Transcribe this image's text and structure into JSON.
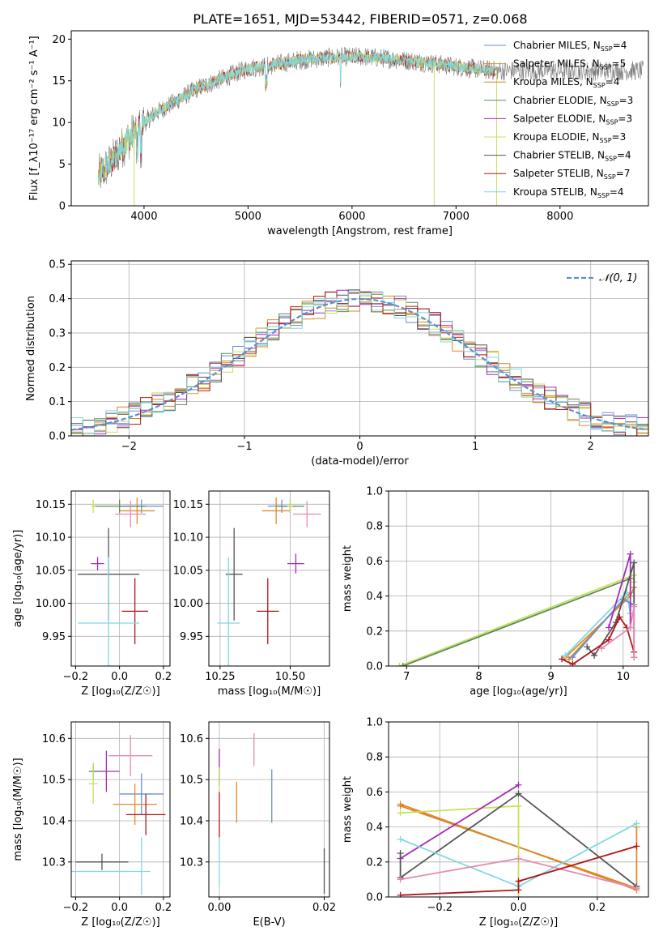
{
  "figure_title": "PLATE=1651, MJD=53442, FIBERID=0571, z=0.068",
  "colors": {
    "chabrier_miles": "#6a8fd6",
    "salpeter_miles": "#e6892b",
    "kroupa_miles": "#d4872a",
    "chabrier_elodie": "#5d8a5d",
    "salpeter_elodie": "#a52ab8",
    "kroupa_elodie": "#c8e05a",
    "chabrier_stelib": "#555555",
    "salpeter_stelib": "#b01818",
    "kroupa_stelib": "#7fd8e0",
    "pink": "#e68ab4",
    "data": "#7a7a7a",
    "normal_curve": "#5b8fd6",
    "grid": "#b0b0b0"
  },
  "chart_data": [
    {
      "type": "line",
      "xlabel": "wavelength [Angstrom, rest frame]",
      "ylabel": "Flux [f_λ10⁻¹⁷ erg cm⁻² s⁻¹ A⁻¹]",
      "xlim": [
        3300,
        8850
      ],
      "ylim": [
        0,
        21
      ],
      "xticks": [
        4000,
        5000,
        6000,
        7000,
        8000
      ],
      "yticks": [
        0,
        5,
        10,
        15,
        20
      ],
      "continuum": [
        [
          3560,
          3.5
        ],
        [
          3700,
          5.5
        ],
        [
          3850,
          8
        ],
        [
          3950,
          9.5
        ],
        [
          4100,
          11
        ],
        [
          4300,
          12.5
        ],
        [
          4500,
          14
        ],
        [
          4800,
          15.5
        ],
        [
          5000,
          16.5
        ],
        [
          5200,
          16.8
        ],
        [
          5500,
          17.5
        ],
        [
          5800,
          17.8
        ],
        [
          6100,
          17.9
        ],
        [
          6400,
          17.6
        ],
        [
          6700,
          17.2
        ],
        [
          7000,
          16.7
        ],
        [
          7200,
          16.4
        ],
        [
          7400,
          16.2
        ]
      ],
      "data_extent": [
        3560,
        8800
      ],
      "legend": [
        {
          "label": "Chabrier MILES, N_SSP=4",
          "base": "Chabrier MILES, N",
          "sub": "SSP",
          "tail": "=4",
          "color_key": "chabrier_miles"
        },
        {
          "label": "Salpeter MILES, N_SSP=5",
          "base": "Salpeter MILES, N",
          "sub": "SSP",
          "tail": "=5",
          "color_key": "salpeter_miles"
        },
        {
          "label": "Kroupa MILES, N_SSP=4",
          "base": "Kroupa MILES, N",
          "sub": "SSP",
          "tail": "=4",
          "color_key": "kroupa_miles"
        },
        {
          "label": "Chabrier ELODIE, N_SSP=3",
          "base": "Chabrier ELODIE, N",
          "sub": "SSP",
          "tail": "=3",
          "color_key": "chabrier_elodie"
        },
        {
          "label": "Salpeter ELODIE, N_SSP=3",
          "base": "Salpeter ELODIE, N",
          "sub": "SSP",
          "tail": "=3",
          "color_key": "salpeter_elodie"
        },
        {
          "label": "Kroupa ELODIE, N_SSP=3",
          "base": "Kroupa ELODIE, N",
          "sub": "SSP",
          "tail": "=3",
          "color_key": "kroupa_elodie"
        },
        {
          "label": "Chabrier STELIB, N_SSP=4",
          "base": "Chabrier STELIB, N",
          "sub": "SSP",
          "tail": "=4",
          "color_key": "chabrier_stelib"
        },
        {
          "label": "Salpeter STELIB, N_SSP=7",
          "base": "Salpeter STELIB, N",
          "sub": "SSP",
          "tail": "=7",
          "color_key": "salpeter_stelib"
        },
        {
          "label": "Kroupa STELIB, N_SSP=4",
          "base": "Kroupa STELIB, N",
          "sub": "SSP",
          "tail": "=4",
          "color_key": "kroupa_stelib"
        }
      ]
    },
    {
      "type": "histogram",
      "xlabel": "(data-model)/error",
      "ylabel": "Normed distribution",
      "xlim": [
        -2.5,
        2.5
      ],
      "ylim": [
        0,
        0.51
      ],
      "xticks": [
        -2,
        -1,
        0,
        1,
        2
      ],
      "yticks": [
        0.0,
        0.1,
        0.2,
        0.3,
        0.4,
        0.5
      ],
      "legend": "𝒩(0, 1)",
      "bin_width": 0.1
    },
    {
      "type": "scatter",
      "xlabel": "Z [log₁₀(Z/Z☉)]",
      "ylabel": "age  [log₁₀(age/yr)]",
      "xlim": [
        -0.22,
        0.23
      ],
      "ylim": [
        9.905,
        10.17
      ],
      "xticks": [
        -0.2,
        0.0,
        0.2
      ],
      "yticks": [
        9.95,
        10.0,
        10.05,
        10.1,
        10.15
      ],
      "points": [
        {
          "x": 0.1,
          "y": 10.147,
          "xerr": 0.1,
          "yerr": 0.01,
          "c": "chabrier_miles"
        },
        {
          "x": 0.08,
          "y": 10.14,
          "xerr": 0.08,
          "yerr": 0.02,
          "c": "salpeter_miles"
        },
        {
          "x": 0.0,
          "y": 10.147,
          "xerr": 0.12,
          "yerr": 0.01,
          "c": "chabrier_elodie"
        },
        {
          "x": 0.05,
          "y": 10.135,
          "xerr": 0.07,
          "yerr": 0.02,
          "c": "pink"
        },
        {
          "x": -0.1,
          "y": 10.06,
          "xerr": 0.03,
          "yerr": 0.01,
          "c": "salpeter_elodie"
        },
        {
          "x": -0.12,
          "y": 10.147,
          "xerr": 0.01,
          "yerr": 0.01,
          "c": "kroupa_elodie"
        },
        {
          "x": -0.05,
          "y": 10.044,
          "xerr": 0.14,
          "yerr": 0.07,
          "c": "chabrier_stelib"
        },
        {
          "x": 0.07,
          "y": 9.988,
          "xerr": 0.06,
          "yerr": 0.05,
          "c": "salpeter_stelib"
        },
        {
          "x": -0.05,
          "y": 9.97,
          "xerr": 0.14,
          "yerr": 0.1,
          "c": "kroupa_stelib"
        }
      ]
    },
    {
      "type": "scatter",
      "xlabel": "mass [log₁₀(M/M☉)]",
      "ylabel": "",
      "xlim": [
        10.21,
        10.64
      ],
      "ylim": [
        9.905,
        10.17
      ],
      "xticks": [
        10.25,
        10.5
      ],
      "yticks": [
        9.95,
        10.0,
        10.05,
        10.1,
        10.15
      ],
      "points": [
        {
          "x": 10.47,
          "y": 10.147,
          "xerr": 0.05,
          "yerr": 0.01,
          "c": "chabrier_miles"
        },
        {
          "x": 10.45,
          "y": 10.14,
          "xerr": 0.05,
          "yerr": 0.02,
          "c": "salpeter_miles"
        },
        {
          "x": 10.5,
          "y": 10.147,
          "xerr": 0.05,
          "yerr": 0.01,
          "c": "chabrier_elodie"
        },
        {
          "x": 10.56,
          "y": 10.135,
          "xerr": 0.05,
          "yerr": 0.02,
          "c": "pink"
        },
        {
          "x": 10.52,
          "y": 10.06,
          "xerr": 0.03,
          "yerr": 0.015,
          "c": "salpeter_elodie"
        },
        {
          "x": 10.5,
          "y": 10.147,
          "xerr": 0.01,
          "yerr": 0.01,
          "c": "kroupa_elodie"
        },
        {
          "x": 10.3,
          "y": 10.044,
          "xerr": 0.03,
          "yerr": 0.07,
          "c": "chabrier_stelib"
        },
        {
          "x": 10.42,
          "y": 9.988,
          "xerr": 0.04,
          "yerr": 0.05,
          "c": "salpeter_stelib"
        },
        {
          "x": 10.28,
          "y": 9.97,
          "xerr": 0.04,
          "yerr": 0.1,
          "c": "kroupa_stelib"
        }
      ]
    },
    {
      "type": "line",
      "xlabel": "age  [log₁₀(age/yr)]",
      "ylabel": "mass weight",
      "xlim": [
        6.75,
        10.35
      ],
      "ylim": [
        0,
        1.0
      ],
      "xticks": [
        7,
        8,
        9,
        10
      ],
      "yticks": [
        0.0,
        0.2,
        0.4,
        0.6,
        0.8,
        1.0
      ],
      "series": [
        {
          "c": "kroupa_elodie",
          "pts": [
            [
              6.9,
              0.0
            ],
            [
              10.15,
              0.52
            ],
            [
              10.15,
              0.48
            ]
          ]
        },
        {
          "c": "chabrier_elodie",
          "pts": [
            [
              6.95,
              0.0
            ],
            [
              10.1,
              0.5
            ]
          ]
        },
        {
          "c": "salpeter_miles",
          "pts": [
            [
              9.2,
              0.05
            ],
            [
              10.1,
              0.4
            ],
            [
              10.15,
              0.45
            ]
          ]
        },
        {
          "c": "kroupa_miles",
          "pts": [
            [
              9.25,
              0.04
            ],
            [
              10.1,
              0.42
            ]
          ]
        },
        {
          "c": "kroupa_stelib",
          "pts": [
            [
              9.2,
              0.06
            ],
            [
              10.05,
              0.42
            ],
            [
              10.1,
              0.3
            ]
          ]
        },
        {
          "c": "chabrier_miles",
          "pts": [
            [
              9.3,
              0.05
            ],
            [
              10.0,
              0.38
            ],
            [
              10.15,
              0.35
            ]
          ]
        },
        {
          "c": "salpeter_elodie",
          "pts": [
            [
              9.8,
              0.22
            ],
            [
              10.1,
              0.64
            ],
            [
              10.1,
              0.22
            ]
          ]
        },
        {
          "c": "chabrier_stelib",
          "pts": [
            [
              9.5,
              0.11
            ],
            [
              9.6,
              0.06
            ],
            [
              9.9,
              0.25
            ],
            [
              10.15,
              0.59
            ],
            [
              10.15,
              0.05
            ]
          ]
        },
        {
          "c": "salpeter_stelib",
          "pts": [
            [
              9.15,
              0.04
            ],
            [
              9.3,
              0.01
            ],
            [
              9.8,
              0.15
            ],
            [
              9.95,
              0.28
            ],
            [
              10.05,
              0.22
            ],
            [
              10.15,
              0.08
            ]
          ]
        },
        {
          "c": "pink",
          "pts": [
            [
              9.7,
              0.1
            ],
            [
              10.1,
              0.22
            ],
            [
              10.15,
              0.34
            ],
            [
              10.15,
              0.05
            ]
          ]
        }
      ]
    },
    {
      "type": "scatter",
      "xlabel": "Z [log₁₀(Z/Z☉)]",
      "ylabel": "mass [log₁₀(M/M☉)]",
      "xlim": [
        -0.22,
        0.23
      ],
      "ylim": [
        10.215,
        10.64
      ],
      "xticks": [
        -0.2,
        0.0,
        0.2
      ],
      "yticks": [
        10.3,
        10.4,
        10.5,
        10.6
      ],
      "points": [
        {
          "x": 0.1,
          "y": 10.465,
          "xerr": 0.1,
          "yerr": 0.05,
          "c": "chabrier_miles"
        },
        {
          "x": 0.07,
          "y": 10.44,
          "xerr": 0.1,
          "yerr": 0.05,
          "c": "salpeter_miles"
        },
        {
          "x": 0.05,
          "y": 10.558,
          "xerr": 0.1,
          "yerr": 0.05,
          "c": "pink"
        },
        {
          "x": -0.06,
          "y": 10.52,
          "xerr": 0.06,
          "yerr": 0.05,
          "c": "salpeter_elodie"
        },
        {
          "x": -0.12,
          "y": 10.52,
          "xerr": 0.02,
          "yerr": 0.02,
          "c": "chabrier_elodie"
        },
        {
          "x": -0.12,
          "y": 10.49,
          "xerr": 0.02,
          "yerr": 0.05,
          "c": "kroupa_elodie"
        },
        {
          "x": 0.12,
          "y": 10.415,
          "xerr": 0.09,
          "yerr": 0.05,
          "c": "salpeter_stelib"
        },
        {
          "x": -0.08,
          "y": 10.3,
          "xerr": 0.12,
          "yerr": 0.02,
          "c": "chabrier_stelib"
        },
        {
          "x": -0.05,
          "y": 10.277,
          "xerr": 0.19,
          "yerr": 0.0,
          "c": "kroupa_stelib"
        },
        {
          "x": 0.1,
          "y": 10.29,
          "xerr": 0.0,
          "yerr": 0.07,
          "c": "kroupa_stelib"
        }
      ]
    },
    {
      "type": "scatter",
      "xlabel": "E(B-V)",
      "ylabel": "",
      "xlim": [
        -0.002,
        0.021
      ],
      "ylim": [
        10.215,
        10.64
      ],
      "xticks": [
        0.0,
        0.02
      ],
      "tick_labels": [
        "0.00",
        "0.02"
      ],
      "yticks": [
        10.3,
        10.4,
        10.5,
        10.6
      ],
      "points": [
        {
          "x": 0.0,
          "y": 10.53,
          "xerr": 0,
          "yerr": 0.045,
          "c": "salpeter_elodie"
        },
        {
          "x": 0.0,
          "y": 10.415,
          "xerr": 0,
          "yerr": 0.055,
          "c": "salpeter_stelib"
        },
        {
          "x": 0.0,
          "y": 10.5,
          "xerr": 0,
          "yerr": 0.03,
          "c": "kroupa_elodie"
        },
        {
          "x": 0.0,
          "y": 10.3,
          "xerr": 0,
          "yerr": 0.06,
          "c": "kroupa_stelib"
        },
        {
          "x": 0.0033,
          "y": 10.445,
          "xerr": 0,
          "yerr": 0.05,
          "c": "salpeter_miles"
        },
        {
          "x": 0.0066,
          "y": 10.573,
          "xerr": 0,
          "yerr": 0.04,
          "c": "pink"
        },
        {
          "x": 0.01,
          "y": 10.46,
          "xerr": 0,
          "yerr": 0.065,
          "c": "chabrier_miles"
        },
        {
          "x": 0.02,
          "y": 10.278,
          "xerr": 0,
          "yerr": 0.055,
          "c": "chabrier_stelib"
        }
      ]
    },
    {
      "type": "line",
      "xlabel": "Z [log₁₀(Z/Z☉)]",
      "ylabel": "mass weight",
      "xlim": [
        -0.33,
        0.33
      ],
      "ylim": [
        0,
        1.0
      ],
      "xticks": [
        -0.2,
        0.0,
        0.2
      ],
      "yticks": [
        0.0,
        0.2,
        0.4,
        0.6,
        0.8,
        1.0
      ],
      "series": [
        {
          "c": "salpeter_miles",
          "pts": [
            [
              -0.3,
              0.53
            ],
            [
              0.3,
              0.04
            ],
            [
              0.3,
              0.4
            ]
          ]
        },
        {
          "c": "kroupa_miles",
          "pts": [
            [
              -0.3,
              0.52
            ],
            [
              0.3,
              0.05
            ]
          ]
        },
        {
          "c": "kroupa_elodie",
          "pts": [
            [
              -0.3,
              0.48
            ],
            [
              0.0,
              0.52
            ],
            [
              0.0,
              0.0
            ]
          ]
        },
        {
          "c": "salpeter_elodie",
          "pts": [
            [
              -0.3,
              0.22
            ],
            [
              0.0,
              0.64
            ]
          ]
        },
        {
          "c": "chabrier_stelib",
          "pts": [
            [
              -0.3,
              0.25
            ],
            [
              -0.3,
              0.11
            ],
            [
              0.0,
              0.59
            ],
            [
              0.3,
              0.06
            ]
          ]
        },
        {
          "c": "kroupa_stelib",
          "pts": [
            [
              -0.3,
              0.33
            ],
            [
              0.0,
              0.06
            ],
            [
              0.3,
              0.42
            ]
          ]
        },
        {
          "c": "pink",
          "pts": [
            [
              -0.3,
              0.1
            ],
            [
              0.0,
              0.22
            ],
            [
              0.3,
              0.05
            ]
          ]
        },
        {
          "c": "salpeter_stelib",
          "pts": [
            [
              -0.3,
              0.01
            ],
            [
              0.0,
              0.04
            ],
            [
              0.0,
              0.09
            ],
            [
              0.3,
              0.29
            ]
          ]
        }
      ]
    }
  ]
}
